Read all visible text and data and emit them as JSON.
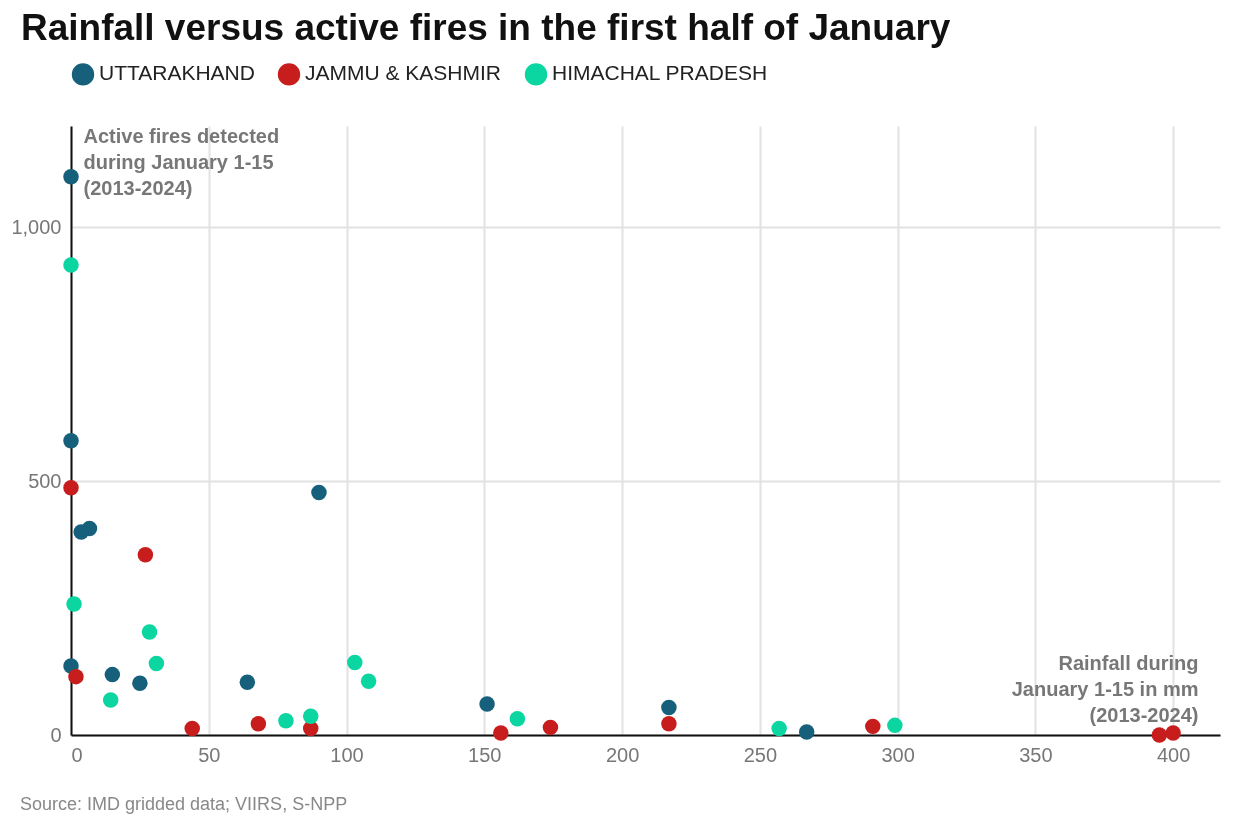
{
  "chart_data": {
    "type": "scatter",
    "title": "Rainfall versus active fires in the first half of January",
    "xlabel": "Rainfall during\nJanuary 1-15 in mm\n(2013-2024)",
    "ylabel": "Active fires detected\nduring January 1-15\n(2013-2024)",
    "annotations": [
      "Source: IMD gridded data; VIIRS, S-NPP"
    ],
    "xlim": [
      0,
      417
    ],
    "xticks": [
      0,
      50,
      100,
      150,
      200,
      250,
      300,
      350,
      400
    ],
    "ylim": [
      0,
      1200
    ],
    "yticks": [
      0,
      500,
      {
        "value": 1000,
        "label": "1,000"
      }
    ],
    "grid": true,
    "legend": "top left",
    "marker": "circle",
    "series": [
      {
        "name": "UTTARAKHAND",
        "color": "#17607c",
        "x": [
          0,
          0,
          3.7,
          6.7,
          90,
          0,
          15,
          25,
          64,
          151,
          217,
          267
        ],
        "values": [
          1100,
          580,
          400,
          407,
          478,
          136,
          119,
          102,
          104,
          61,
          54,
          6
        ]
      },
      {
        "name": "JAMMU & KASHMIR",
        "color": "#c71e1d",
        "x": [
          0,
          1.8,
          27,
          44,
          68,
          87,
          156,
          174,
          217,
          291,
          395,
          400
        ],
        "values": [
          487,
          115,
          355,
          13,
          22,
          13,
          4,
          15,
          22,
          17,
          0,
          4
        ]
      },
      {
        "name": "HIMACHAL PRADESH",
        "color": "#0bd5a0",
        "x": [
          0,
          1.1,
          14.4,
          28.5,
          31,
          78,
          87,
          103,
          108,
          162,
          257,
          299
        ],
        "values": [
          926,
          258,
          69,
          203,
          141,
          28,
          37,
          143,
          106,
          32,
          13,
          19
        ]
      }
    ]
  }
}
